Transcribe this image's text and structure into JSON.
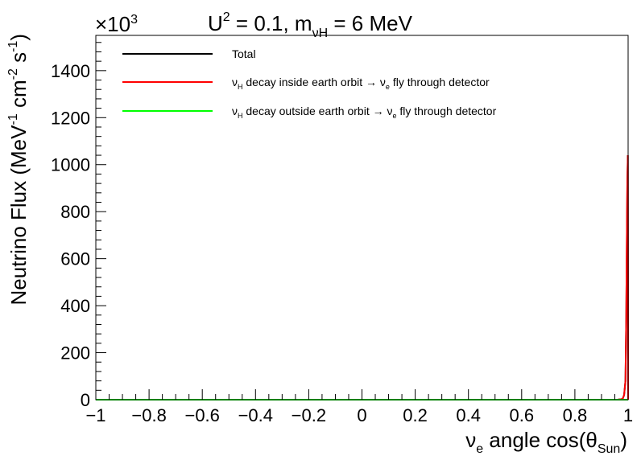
{
  "chart_data": {
    "type": "line",
    "title_parts": {
      "u": "U",
      "u_sup": "2",
      "eq1": " = 0.1, m",
      "m_sub": "νH",
      "eq2": " = 6 MeV"
    },
    "title": "U² = 0.1, m_νH = 6 MeV",
    "ylabel_parts": {
      "a": "Neutrino Flux (MeV",
      "a_sup": "-1",
      "b": " cm",
      "b_sup": "-2",
      "c": " s",
      "c_sup": "-1",
      "d": ")"
    },
    "ylabel": "Neutrino Flux (MeV⁻¹ cm⁻² s⁻¹)",
    "xlabel_parts": {
      "nu": "ν",
      "nu_sub": "e",
      "mid": " angle cos(θ",
      "theta_sub": "Sun",
      "end": ")"
    },
    "xlabel": "ν_e angle cos(θ_Sun)",
    "y_multiplier": "×10",
    "y_multiplier_sup": "3",
    "xlim": [
      -1,
      1
    ],
    "ylim": [
      0,
      1550
    ],
    "y_scale_factor": 1000,
    "x_ticks": [
      -1,
      -0.8,
      -0.6,
      -0.4,
      -0.2,
      0,
      0.2,
      0.4,
      0.6,
      0.8,
      1
    ],
    "x_tick_labels": [
      "−1",
      "−0.8",
      "−0.6",
      "−0.4",
      "−0.2",
      "0",
      "0.2",
      "0.4",
      "0.6",
      "0.8",
      "1"
    ],
    "y_ticks": [
      0,
      200,
      400,
      600,
      800,
      1000,
      1200,
      1400
    ],
    "y_tick_labels": [
      "0",
      "200",
      "400",
      "600",
      "800",
      "1000",
      "1200",
      "1400"
    ],
    "grid": false,
    "legend_position": "top",
    "legend": [
      {
        "key": "total",
        "parts": [
          {
            "t": "Total"
          }
        ]
      },
      {
        "key": "inside",
        "parts": [
          {
            "t": "ν"
          },
          {
            "t": "H",
            "sub": true
          },
          {
            "t": " decay inside earth orbit → ν"
          },
          {
            "t": "e",
            "sub": true
          },
          {
            "t": " fly through detector"
          }
        ]
      },
      {
        "key": "outside",
        "parts": [
          {
            "t": "ν"
          },
          {
            "t": "H",
            "sub": true
          },
          {
            "t": " decay outside earth orbit → ν"
          },
          {
            "t": "e",
            "sub": true
          },
          {
            "t": " fly through detector"
          }
        ]
      }
    ],
    "series": [
      {
        "key": "total",
        "color": "#000000",
        "x": [
          -1.0,
          0.96,
          0.975,
          0.98,
          0.985,
          0.99,
          0.993,
          0.995,
          0.997,
          0.999,
          1.0
        ],
        "y": [
          0,
          0,
          2,
          5,
          20,
          80,
          350,
          650,
          920,
          1040,
          0
        ]
      },
      {
        "key": "inside",
        "color": "#ff0000",
        "x": [
          -1.0,
          0.96,
          0.975,
          0.98,
          0.985,
          0.99,
          0.993,
          0.995,
          0.997,
          0.999,
          1.0
        ],
        "y": [
          0,
          0,
          2,
          5,
          20,
          80,
          350,
          650,
          920,
          1040,
          0
        ]
      },
      {
        "key": "outside",
        "color": "#00ff00",
        "x": [
          -1.0,
          1.0
        ],
        "y": [
          0,
          0
        ]
      }
    ]
  }
}
